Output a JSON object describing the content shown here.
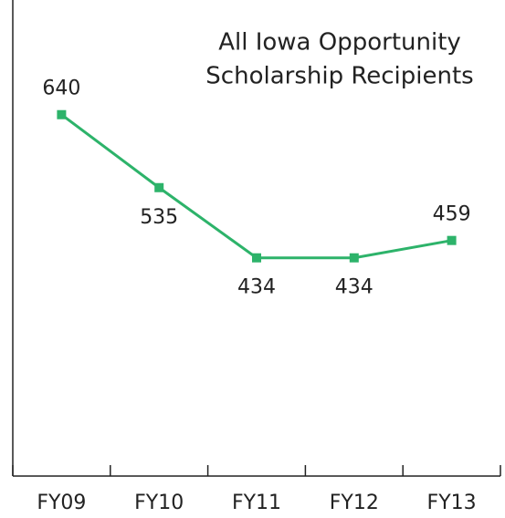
{
  "chart_data": {
    "type": "line",
    "title": [
      "All Iowa Opportunity",
      "Scholarship Recipients"
    ],
    "categories": [
      "FY09",
      "FY10",
      "FY11",
      "FY12",
      "FY13"
    ],
    "series": [
      {
        "name": "All Iowa Opportunity Scholarship Recipients",
        "color": "#2db36a",
        "values": [
          640,
          535,
          434,
          434,
          459
        ]
      }
    ],
    "ylim": [
      120,
      805
    ]
  }
}
